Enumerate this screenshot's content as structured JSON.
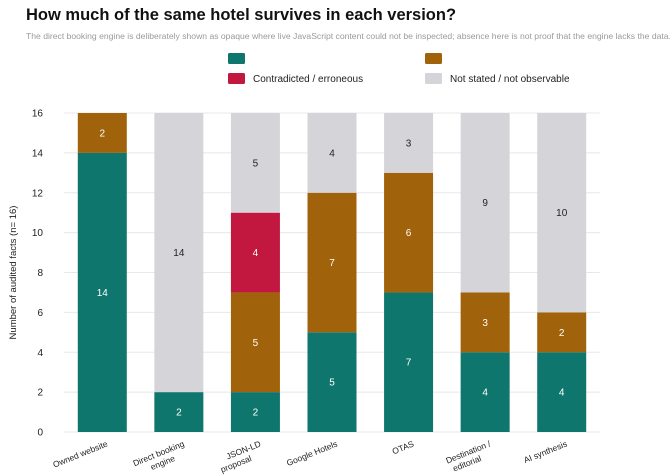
{
  "chart_data": {
    "type": "bar",
    "stacked": true,
    "title": "How much of the same hotel survives in each version?",
    "subtitle": "The direct booking engine is deliberately shown as opaque where live JavaScript content could not be inspected; absence here is not proof that the engine lacks the data.",
    "ylabel": "Number of audited facts (n= 16)",
    "xlabel": "",
    "ylim": [
      0,
      16
    ],
    "yticks": [
      0,
      2,
      4,
      6,
      8,
      10,
      12,
      14,
      16
    ],
    "grid": true,
    "legend_position": "top",
    "categories": [
      [
        "Owned website"
      ],
      [
        "Direct booking",
        "engine"
      ],
      [
        "JSON-LD",
        "proposal"
      ],
      [
        "Google Hotels"
      ],
      [
        "OTAS"
      ],
      [
        "Destination /",
        "editorial"
      ],
      [
        "AI synthesis"
      ]
    ],
    "series": [
      {
        "name": "",
        "color": "#0e766c",
        "label_color": "#ffffff",
        "values": [
          14,
          2,
          2,
          5,
          7,
          4,
          4
        ]
      },
      {
        "name": "",
        "color": "#a0620a",
        "label_color": "#ffffff",
        "values": [
          2,
          0,
          5,
          7,
          6,
          3,
          2
        ]
      },
      {
        "name": "Contradicted / erroneous",
        "color": "#c2183f",
        "label_color": "#ffffff",
        "values": [
          0,
          0,
          4,
          0,
          0,
          0,
          0
        ]
      },
      {
        "name": "Not stated / not observable",
        "color": "#d5d4d9",
        "label_color": "#222222",
        "values": [
          0,
          14,
          5,
          4,
          3,
          9,
          10
        ]
      }
    ]
  }
}
